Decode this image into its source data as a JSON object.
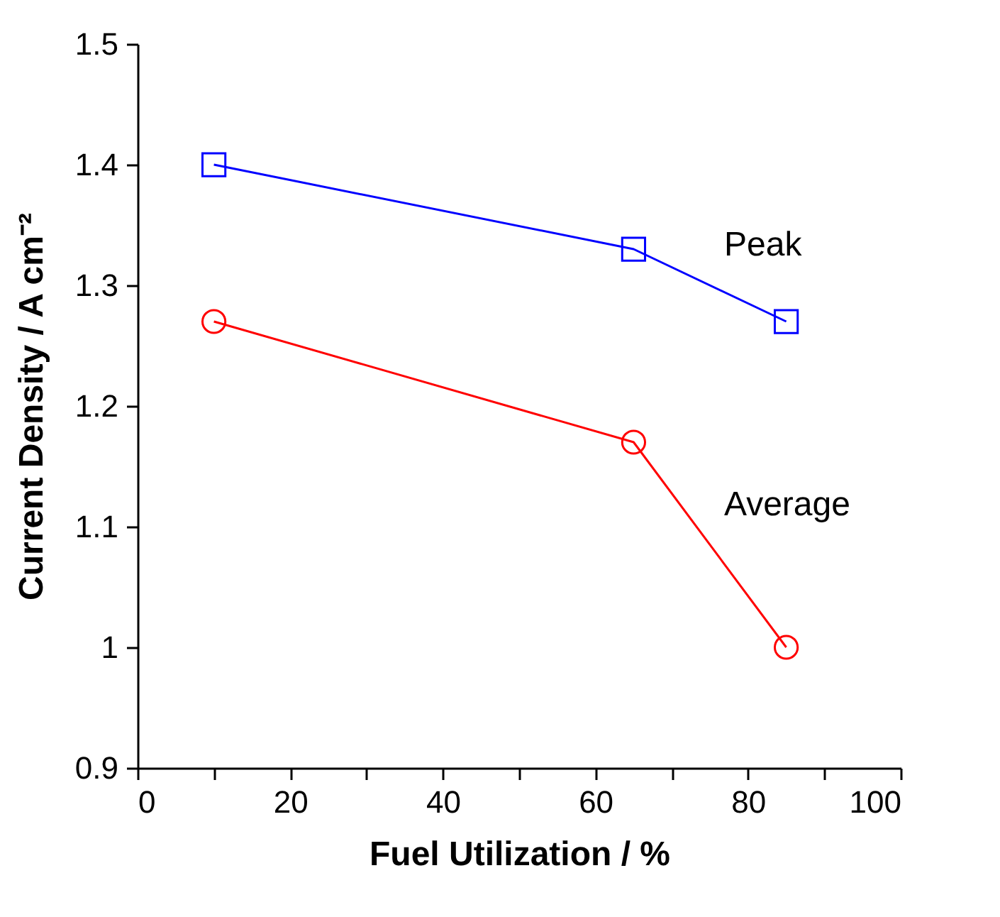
{
  "chart_data": {
    "type": "line",
    "xlabel": "Fuel Utilization / %",
    "ylabel": "Current Density / A cm⁻²",
    "xlim": [
      0,
      100
    ],
    "xticks": [
      0,
      {
        "value": 10,
        "label": null
      },
      20,
      {
        "value": 30,
        "label": null
      },
      40,
      {
        "value": 50,
        "label": null
      },
      60,
      {
        "value": 70,
        "label": null
      },
      80,
      {
        "value": 90,
        "label": null
      },
      100
    ],
    "ylim": [
      0.9,
      1.5
    ],
    "yticks": [
      0.9,
      1,
      1.1,
      1.2,
      1.3,
      1.4,
      1.5
    ],
    "grid": false,
    "legend": false,
    "series": [
      {
        "name": "Peak",
        "color": "#0000ff",
        "marker": "square",
        "x": [
          10,
          65,
          85
        ],
        "values": [
          1.4,
          1.33,
          1.27
        ]
      },
      {
        "name": "Average",
        "color": "#ff0000",
        "marker": "circle",
        "x": [
          10,
          65,
          85
        ],
        "values": [
          1.27,
          1.17,
          1.0
        ]
      }
    ]
  }
}
